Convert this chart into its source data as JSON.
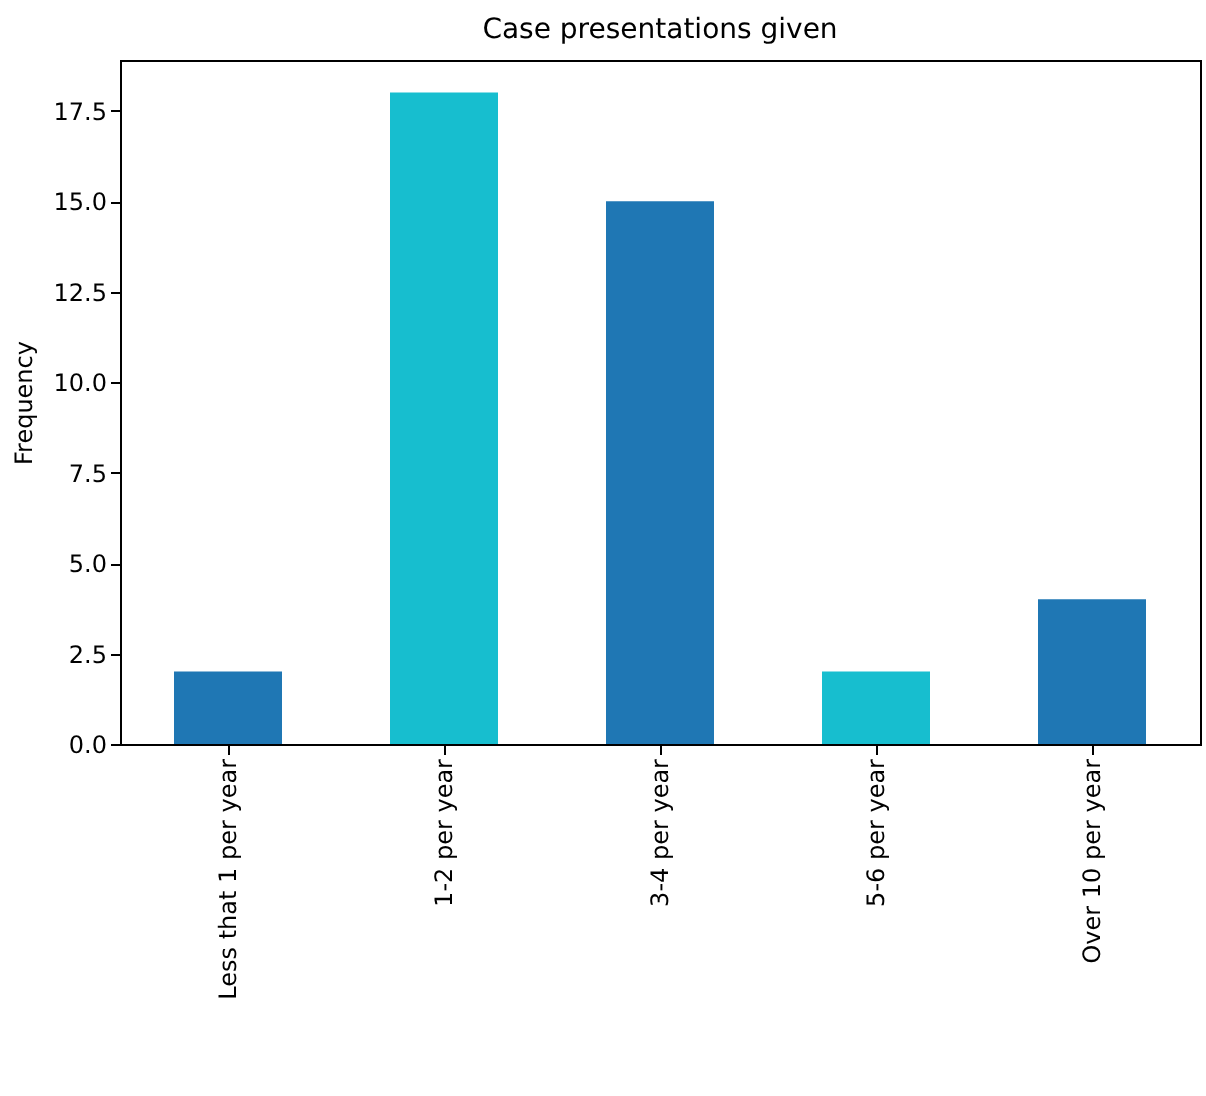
{
  "chart_data": {
    "type": "bar",
    "title": "Case presentations given",
    "ylabel": "Frequency",
    "categories": [
      "Less that 1 per year",
      "1-2 per year",
      "3-4 per year",
      "5-6 per year",
      "Over 10 per year"
    ],
    "values": [
      2,
      18,
      15,
      2,
      4
    ],
    "colors": [
      "#1f77b4",
      "#17becf",
      "#1f77b4",
      "#17becf",
      "#1f77b4"
    ],
    "ylim": [
      0,
      18.9
    ],
    "yticks": [
      {
        "value": 0,
        "label": "0.0"
      },
      {
        "value": 2.5,
        "label": "2.5"
      },
      {
        "value": 5,
        "label": "5.0"
      },
      {
        "value": 7.5,
        "label": "7.5"
      },
      {
        "value": 10,
        "label": "10.0"
      },
      {
        "value": 12.5,
        "label": "12.5"
      },
      {
        "value": 15,
        "label": "15.0"
      },
      {
        "value": 17.5,
        "label": "17.5"
      }
    ],
    "grid": false,
    "legend": false
  }
}
